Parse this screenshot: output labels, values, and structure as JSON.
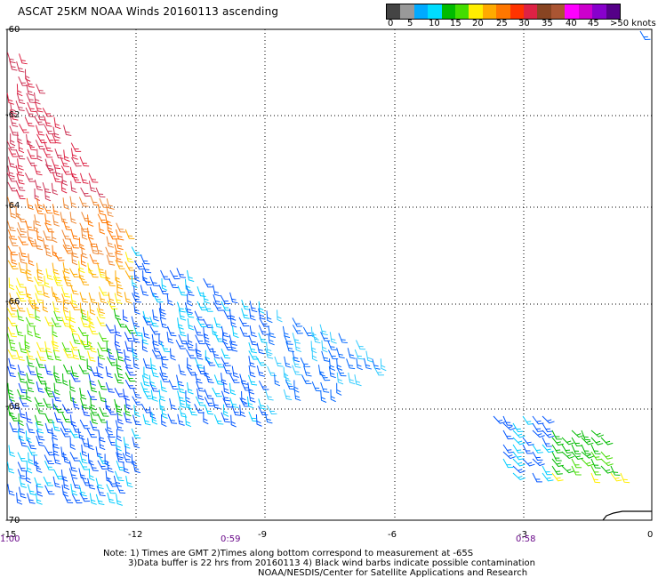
{
  "header": {
    "title": "ASCAT 25KM NOAA Winds 20160113 ascending"
  },
  "colorbar": {
    "colors": [
      "#444444",
      "#999999",
      "#00aaff",
      "#00ddff",
      "#00bb00",
      "#44dd00",
      "#ffee00",
      "#ffaa00",
      "#ff7700",
      "#ff3300",
      "#dd2244",
      "#884422",
      "#aa5533",
      "#ff00ff",
      "#cc00cc",
      "#8800cc",
      "#550088"
    ],
    "labels": [
      "0",
      "5",
      "10",
      "15",
      "20",
      "25",
      "30",
      "35",
      "40",
      "45",
      ">50 knots"
    ]
  },
  "axes": {
    "lat_ticks": [
      "-60",
      "-62",
      "-64",
      "-66",
      "-68",
      "-70"
    ],
    "lon_ticks": [
      "-15",
      "-12",
      "-9",
      "-6",
      "-3",
      "0"
    ]
  },
  "time_labels": [
    "1:00",
    "0:59",
    "0:58"
  ],
  "notes": {
    "line1": "Note: 1) Times are GMT 2)Times along bottom correspond to measurement at -65S",
    "line2": "3)Data buffer is 22 hrs from 20160113 4) Black wind barbs indicate possible contamination",
    "line3": "NOAA/NESDIS/Center for Satellite Applications and Research"
  }
}
